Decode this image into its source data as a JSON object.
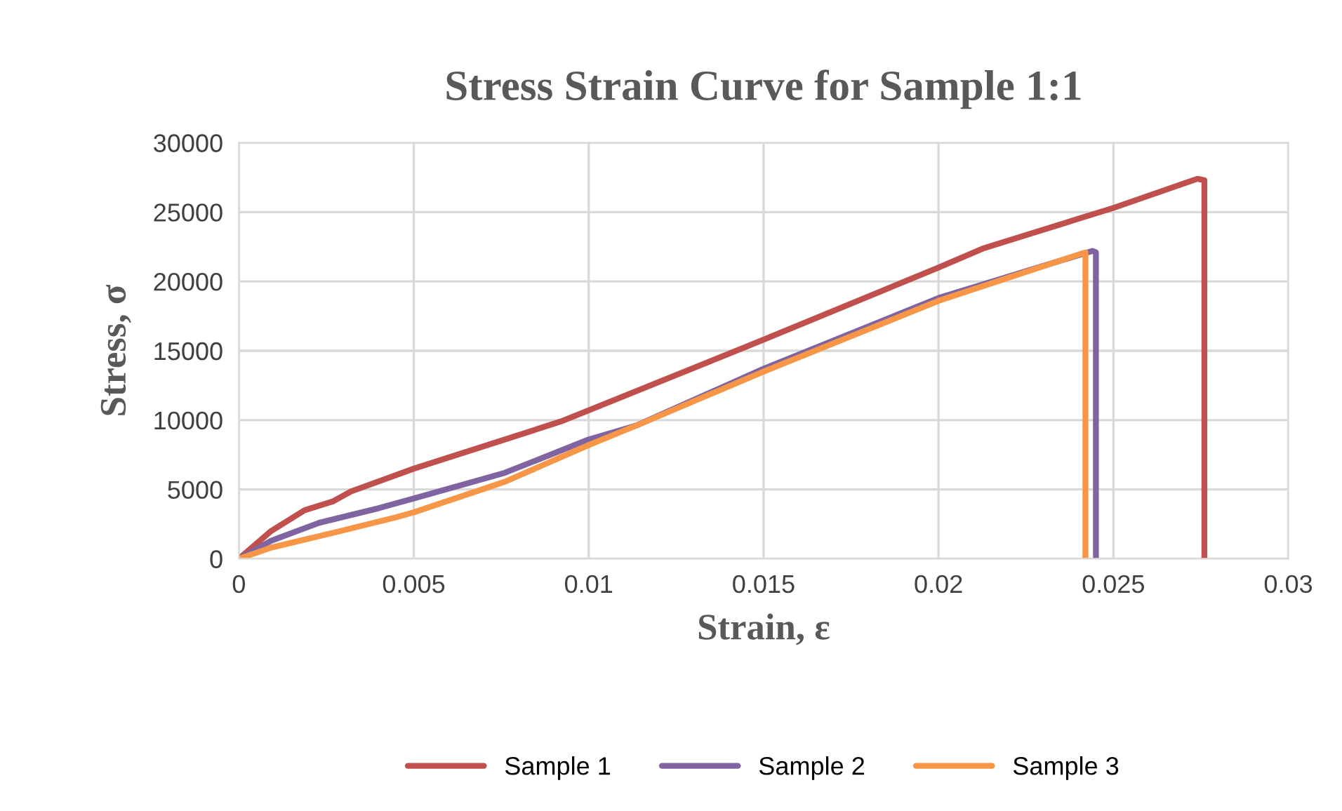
{
  "chart_data": {
    "type": "line",
    "title": "Stress Strain Curve for Sample 1:1",
    "xlabel": "Strain, ε",
    "ylabel": "Stress, σ",
    "xlim": [
      0,
      0.03
    ],
    "xticks": [
      0,
      0.005,
      0.01,
      0.015,
      0.02,
      0.025,
      0.03
    ],
    "ylim": [
      0,
      30000
    ],
    "yticks": [
      0,
      5000,
      10000,
      15000,
      20000,
      25000,
      30000
    ],
    "grid": true,
    "legend": "bottom",
    "marker": "none",
    "line_style": "solid",
    "series": [
      {
        "name": "Sample 1",
        "color": "#c0504d",
        "x": [
          0,
          0.00092,
          0.00188,
          0.0027,
          0.0032,
          0.005,
          0.0076,
          0.0092,
          0.01,
          0.015,
          0.02,
          0.0213,
          0.025,
          0.0274,
          0.0276,
          0.0276
        ],
        "values": [
          0,
          2000,
          3500,
          4150,
          4850,
          6500,
          8600,
          9900,
          10700,
          15800,
          21000,
          22400,
          25300,
          27400,
          27300,
          0
        ]
      },
      {
        "name": "Sample 2",
        "color": "#8064a2",
        "x": [
          0,
          0.00092,
          0.0023,
          0.004,
          0.005,
          0.0076,
          0.01,
          0.01135,
          0.015,
          0.02,
          0.0244,
          0.0245,
          0.0245
        ],
        "values": [
          0,
          1300,
          2600,
          3650,
          4350,
          6200,
          8600,
          9600,
          13700,
          18800,
          22200,
          22100,
          0
        ]
      },
      {
        "name": "Sample 3",
        "color": "#f79646",
        "x": [
          0,
          0.00092,
          0.0029,
          0.0045,
          0.005,
          0.0076,
          0.01,
          0.0115,
          0.015,
          0.02,
          0.0242,
          0.0242
        ],
        "values": [
          0,
          800,
          2000,
          3000,
          3350,
          5550,
          8200,
          9750,
          13500,
          18600,
          22100,
          0
        ]
      }
    ]
  }
}
